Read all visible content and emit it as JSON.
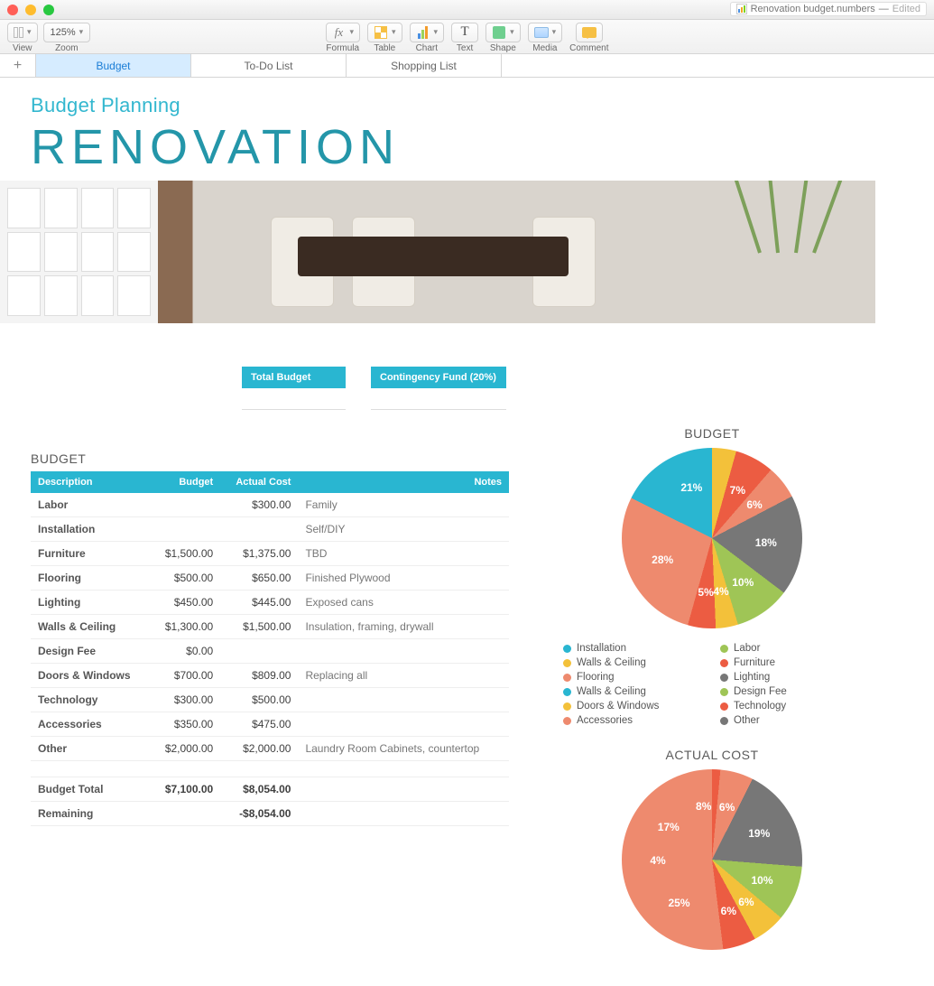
{
  "window": {
    "filename": "Renovation budget.numbers",
    "status": "Edited"
  },
  "toolbar": {
    "view": "View",
    "zoom": "Zoom",
    "zoom_value": "125%",
    "formula": "Formula",
    "table": "Table",
    "chart": "Chart",
    "text": "Text",
    "shape": "Shape",
    "media": "Media",
    "comment": "Comment"
  },
  "tabs": {
    "items": [
      "Budget",
      "To-Do List",
      "Shopping List"
    ],
    "active": 0
  },
  "doc": {
    "subtitle": "Budget Planning",
    "title": "RENOVATION"
  },
  "summary": {
    "total_budget_label": "Total Budget",
    "contingency_label": "Contingency Fund (20%)"
  },
  "budget_table": {
    "title": "BUDGET",
    "columns": [
      "Description",
      "Budget",
      "Actual Cost",
      "Notes"
    ],
    "rows": [
      {
        "desc": "Labor",
        "budget": "",
        "actual": "$300.00",
        "note": "Family"
      },
      {
        "desc": "Installation",
        "budget": "",
        "actual": "",
        "note": "Self/DIY"
      },
      {
        "desc": "Furniture",
        "budget": "$1,500.00",
        "actual": "$1,375.00",
        "note": "TBD"
      },
      {
        "desc": "Flooring",
        "budget": "$500.00",
        "actual": "$650.00",
        "note": "Finished Plywood"
      },
      {
        "desc": "Lighting",
        "budget": "$450.00",
        "actual": "$445.00",
        "note": "Exposed cans"
      },
      {
        "desc": "Walls & Ceiling",
        "budget": "$1,300.00",
        "actual": "$1,500.00",
        "note": "Insulation, framing, drywall"
      },
      {
        "desc": "Design Fee",
        "budget": "$0.00",
        "actual": "",
        "note": ""
      },
      {
        "desc": "Doors & Windows",
        "budget": "$700.00",
        "actual": "$809.00",
        "note": "Replacing all"
      },
      {
        "desc": "Technology",
        "budget": "$300.00",
        "actual": "$500.00",
        "note": ""
      },
      {
        "desc": "Accessories",
        "budget": "$350.00",
        "actual": "$475.00",
        "note": ""
      },
      {
        "desc": "Other",
        "budget": "$2,000.00",
        "actual": "$2,000.00",
        "note": "Laundry Room Cabinets, countertop"
      }
    ],
    "totals": {
      "budget_total_label": "Budget Total",
      "budget_total": "$7,100.00",
      "actual_total": "$8,054.00",
      "remaining_label": "Remaining",
      "remaining": "-$8,054.00"
    }
  },
  "legend": {
    "items": [
      {
        "label": "Installation",
        "color": "#29b6d1"
      },
      {
        "label": "Labor",
        "color": "#9fc556"
      },
      {
        "label": "Walls & Ceiling",
        "color": "#f3c13a"
      },
      {
        "label": "Furniture",
        "color": "#ec5c42"
      },
      {
        "label": "Flooring",
        "color": "#ee8a6e"
      },
      {
        "label": "Lighting",
        "color": "#777777"
      },
      {
        "label": "Walls & Ceiling",
        "color": "#29b6d1"
      },
      {
        "label": "Design Fee",
        "color": "#9fc556"
      },
      {
        "label": "Doors & Windows",
        "color": "#f3c13a"
      },
      {
        "label": "Technology",
        "color": "#ec5c42"
      },
      {
        "label": "Accessories",
        "color": "#ee8a6e"
      },
      {
        "label": "Other",
        "color": "#777777"
      }
    ]
  },
  "charts": {
    "budget": {
      "title": "BUDGET",
      "type": "pie",
      "slices": [
        {
          "label": "21%",
          "pct": 21,
          "color": "#f3c13a"
        },
        {
          "label": "7%",
          "pct": 7,
          "color": "#ec5c42"
        },
        {
          "label": "6%",
          "pct": 6,
          "color": "#ee8a6e"
        },
        {
          "label": "18%",
          "pct": 18,
          "color": "#777777"
        },
        {
          "label": "10%",
          "pct": 10,
          "color": "#9fc556"
        },
        {
          "label": "4%",
          "pct": 4,
          "color": "#f3c13a"
        },
        {
          "label": "5%",
          "pct": 5,
          "color": "#ec5c42"
        },
        {
          "label": "28%",
          "pct": 28,
          "color": "#ee8a6e"
        },
        {
          "label": "",
          "pct": 1,
          "color": "#29b6d1"
        }
      ],
      "start_deg": -60
    },
    "actual": {
      "title": "ACTUAL COST",
      "type": "pie",
      "slices": [
        {
          "label": "4%",
          "pct": 4,
          "color": "#29b6d1"
        },
        {
          "label": "17%",
          "pct": 17,
          "color": "#f3c13a"
        },
        {
          "label": "8%",
          "pct": 8,
          "color": "#ec5c42"
        },
        {
          "label": "6%",
          "pct": 6,
          "color": "#ee8a6e"
        },
        {
          "label": "19%",
          "pct": 19,
          "color": "#777777"
        },
        {
          "label": "10%",
          "pct": 10,
          "color": "#9fc556"
        },
        {
          "label": "6%",
          "pct": 6,
          "color": "#f3c13a"
        },
        {
          "label": "6%",
          "pct": 6,
          "color": "#ec5c42"
        },
        {
          "label": "25%",
          "pct": 25,
          "color": "#ee8a6e"
        }
      ],
      "start_deg": -98
    }
  }
}
